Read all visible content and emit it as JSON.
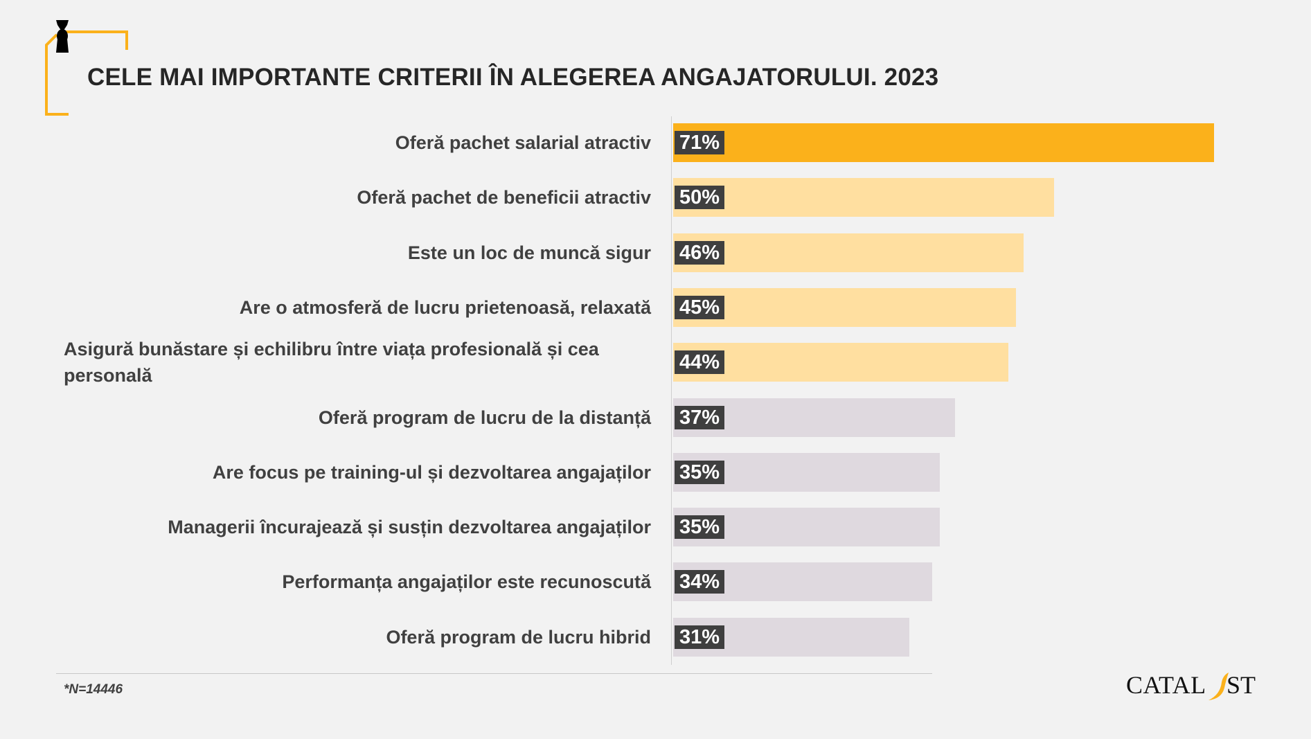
{
  "title": "CELE MAI IMPORTANTE CRITERII ÎN ALEGEREA ANGAJATORULUI. 2023",
  "footnote": "*N=14446",
  "logo_text": "CATALYST",
  "colors": {
    "top": "#fbb11b",
    "high": "#ffdfa0",
    "low": "#dfd9df",
    "badge": "#3f3f3f"
  },
  "chart_data": {
    "type": "bar",
    "orientation": "horizontal",
    "title": "CELE MAI IMPORTANTE CRITERII ÎN ALEGEREA ANGAJATORULUI. 2023",
    "xlabel": "",
    "ylabel": "",
    "xlim": [
      0,
      100
    ],
    "categories": [
      "Oferă pachet salarial atractiv",
      "Oferă pachet de beneficii atractiv",
      "Este un loc de muncă sigur",
      "Are o atmosferă de lucru prietenoasă, relaxată",
      "Asigură bunăstare și echilibru între viața profesională și cea personală",
      "Oferă program de lucru de la distanță",
      "Are focus pe training-ul și dezvoltarea angajaților",
      "Managerii încurajează și susțin dezvoltarea angajaților",
      "Performanța angajaților este recunoscută",
      "Oferă program de lucru hibrid"
    ],
    "values": [
      71,
      50,
      46,
      45,
      44,
      37,
      35,
      35,
      34,
      31
    ],
    "value_labels": [
      "71%",
      "50%",
      "46%",
      "45%",
      "44%",
      "37%",
      "35%",
      "35%",
      "34%",
      "31%"
    ],
    "tiers": [
      "top",
      "high",
      "high",
      "high",
      "high",
      "low",
      "low",
      "low",
      "low",
      "low"
    ]
  }
}
